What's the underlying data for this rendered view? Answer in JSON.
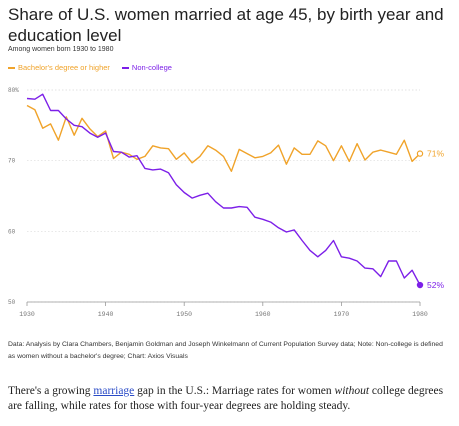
{
  "title": "Share of U.S. women married at age 45, by birth year and education level",
  "subtitle": "Among women born 1930 to 1980",
  "source": "Data: Analysis by Clara Chambers, Benjamin Goldman and Joseph Winkelmann of Current Population Survey data; Note: Non-college is defined as women without a bachelor's degree; Chart: Axios Visuals",
  "caption": {
    "before": "There's a growing ",
    "link": "marriage",
    "middle": " gap in the U.S.: Marriage rates for women ",
    "emph": "without",
    "after": " college degrees are falling, while rates for those with four-year degrees are holding steady."
  },
  "colors": {
    "bachelors": "#f0a32a",
    "noncollege": "#7c1fe8",
    "grid": "#d9d9d9",
    "tick": "#777777"
  },
  "chart_data": {
    "type": "line",
    "x": [
      1930,
      1931,
      1932,
      1933,
      1934,
      1935,
      1936,
      1937,
      1938,
      1939,
      1940,
      1941,
      1942,
      1943,
      1944,
      1945,
      1946,
      1947,
      1948,
      1949,
      1950,
      1951,
      1952,
      1953,
      1954,
      1955,
      1956,
      1957,
      1958,
      1959,
      1960,
      1961,
      1962,
      1963,
      1964,
      1965,
      1966,
      1967,
      1968,
      1969,
      1970,
      1971,
      1972,
      1973,
      1974,
      1975,
      1976,
      1977,
      1978,
      1979,
      1980
    ],
    "xticks": [
      1930,
      1940,
      1950,
      1960,
      1970,
      1980
    ],
    "yticks": [
      50,
      60,
      70,
      80
    ],
    "ytick_labels": [
      "50",
      "60",
      "70",
      "80%"
    ],
    "xlim": [
      1930,
      1980
    ],
    "ylim": [
      50,
      80
    ],
    "grid": true,
    "legend": "top-left",
    "series": [
      {
        "name": "Bachelor's degree or higher",
        "end_label": "71%",
        "values": [
          77.8,
          77.2,
          74.6,
          75.2,
          72.9,
          76.2,
          73.6,
          76.0,
          74.5,
          73.4,
          74.2,
          70.3,
          71.2,
          70.9,
          70.2,
          70.6,
          72.1,
          71.8,
          71.7,
          70.2,
          71.1,
          69.7,
          70.6,
          72.1,
          71.5,
          70.6,
          68.5,
          71.6,
          71.0,
          70.4,
          70.6,
          71.1,
          72.2,
          69.5,
          71.8,
          70.9,
          70.9,
          72.8,
          72.1,
          70.0,
          72.1,
          69.9,
          72.4,
          70.1,
          71.2,
          71.5,
          71.2,
          70.9,
          72.9,
          69.9,
          71.0
        ]
      },
      {
        "name": "Non-college",
        "end_label": "52%",
        "values": [
          78.8,
          78.7,
          79.4,
          77.1,
          77.1,
          75.9,
          75.0,
          74.8,
          73.9,
          73.3,
          73.9,
          71.3,
          71.2,
          70.5,
          70.7,
          68.9,
          68.7,
          68.8,
          68.3,
          66.6,
          65.5,
          64.7,
          65.1,
          65.4,
          64.2,
          63.3,
          63.3,
          63.5,
          63.4,
          62.0,
          61.7,
          61.3,
          60.5,
          59.9,
          60.2,
          58.7,
          57.3,
          56.4,
          57.3,
          58.7,
          56.4,
          56.2,
          55.8,
          54.8,
          54.7,
          53.6,
          55.8,
          55.8,
          53.4,
          54.5,
          52.4
        ]
      }
    ]
  }
}
